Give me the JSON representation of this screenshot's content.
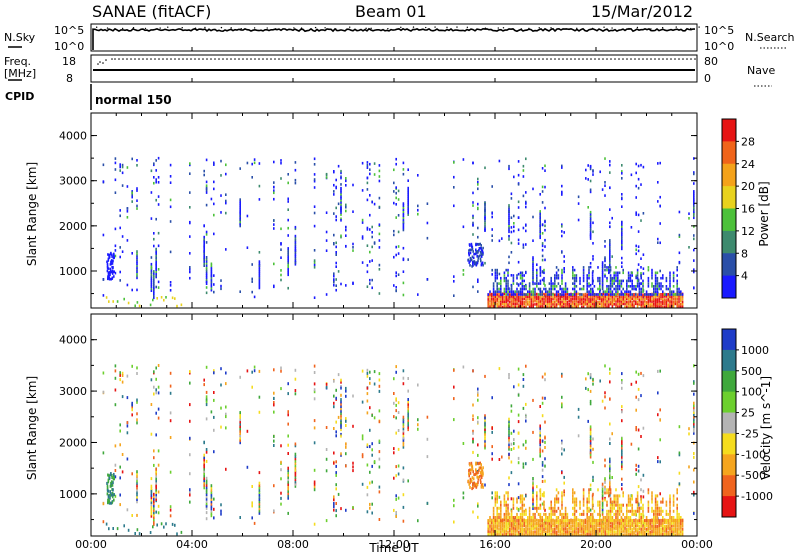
{
  "header": {
    "title": "SANAE (fitACF)",
    "beam": "Beam 01",
    "date": "15/Mar/2012"
  },
  "panels": {
    "nsky": {
      "left_label": "N.Sky",
      "left_ticks": [
        "10^5",
        "10^0"
      ],
      "right_label": "N.Search",
      "right_ticks": [
        "10^5",
        "10^0"
      ]
    },
    "freq": {
      "left_label_1": "Freq.",
      "left_label_2": "[MHz]",
      "left_ticks": [
        "18",
        "8"
      ],
      "right_label": "Nave",
      "right_ticks": [
        "80",
        "0"
      ]
    },
    "cpid": {
      "label": "CPID",
      "value": "normal 150"
    }
  },
  "chart_data": [
    {
      "type": "heatmap",
      "name": "power",
      "ylabel": "Slant Range [km]",
      "xlabel": "Time UT",
      "yticks": [
        "1000",
        "2000",
        "3000",
        "4000"
      ],
      "ylim": [
        180,
        4500
      ],
      "colorbar": {
        "label": "Power [dB]",
        "ticks": [
          "4",
          "8",
          "12",
          "16",
          "20",
          "24",
          "28"
        ],
        "colors": [
          "#1a1aff",
          "#2a4fa8",
          "#3d8a6e",
          "#4cc13a",
          "#e8d21e",
          "#f4a21a",
          "#f0641a",
          "#e61414"
        ]
      }
    },
    {
      "type": "heatmap",
      "name": "velocity",
      "ylabel": "Slant Range [km]",
      "xlabel": "Time UT",
      "yticks": [
        "1000",
        "2000",
        "3000",
        "4000"
      ],
      "ylim": [
        180,
        4500
      ],
      "colorbar": {
        "label": "Velocity [m s^-1]",
        "ticks": [
          "1000",
          "500",
          "100",
          "25",
          "-25",
          "-100",
          "-500",
          "-1000"
        ],
        "colors": [
          "#1e3cc8",
          "#2d7a8c",
          "#3fa83c",
          "#6ccf2e",
          "#b4b4b4",
          "#f5dc1e",
          "#f5a51e",
          "#f0641e",
          "#e61414"
        ]
      }
    }
  ],
  "xaxis": {
    "ticks": [
      "00:00",
      "04:00",
      "08:00",
      "12:00",
      "16:00",
      "20:00",
      "00:00"
    ],
    "label": "Time UT"
  }
}
